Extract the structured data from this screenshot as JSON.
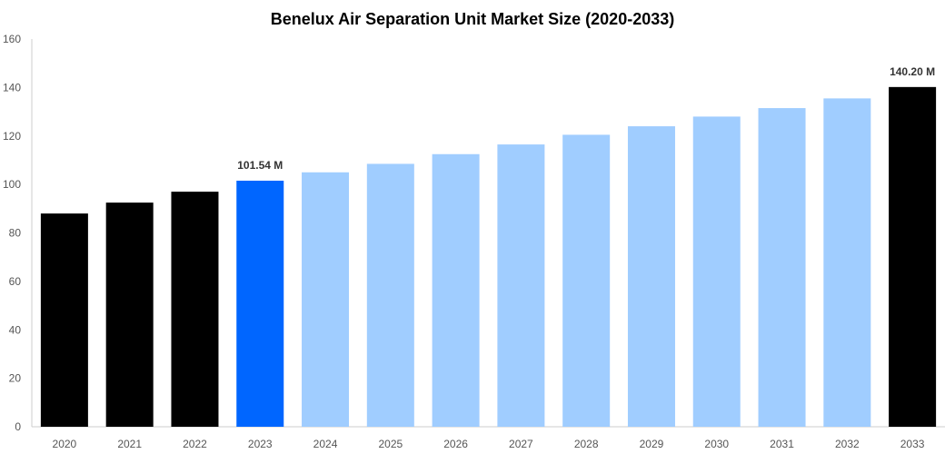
{
  "chart_data": {
    "type": "bar",
    "title": "Benelux Air Separation Unit Market Size (2020-2033)",
    "xlabel": "",
    "ylabel": "",
    "categories": [
      "2020",
      "2021",
      "2022",
      "2023",
      "2024",
      "2025",
      "2026",
      "2027",
      "2028",
      "2029",
      "2030",
      "2031",
      "2032",
      "2033"
    ],
    "values": [
      88,
      92.5,
      97,
      101.54,
      105,
      108.5,
      112.5,
      116.5,
      120.5,
      124,
      128,
      131.5,
      135.5,
      140.2
    ],
    "bar_colors": [
      "#000000",
      "#000000",
      "#000000",
      "#0066ff",
      "#a0cdff",
      "#a0cdff",
      "#a0cdff",
      "#a0cdff",
      "#a0cdff",
      "#a0cdff",
      "#a0cdff",
      "#a0cdff",
      "#a0cdff",
      "#000000"
    ],
    "data_labels": [
      {
        "category": "2023",
        "text": "101.54 M"
      },
      {
        "category": "2033",
        "text": "140.20 M"
      }
    ],
    "ylim": [
      0,
      160
    ],
    "yticks": [
      0,
      20,
      40,
      60,
      80,
      100,
      120,
      140,
      160
    ],
    "grid": false,
    "legend": "none"
  }
}
